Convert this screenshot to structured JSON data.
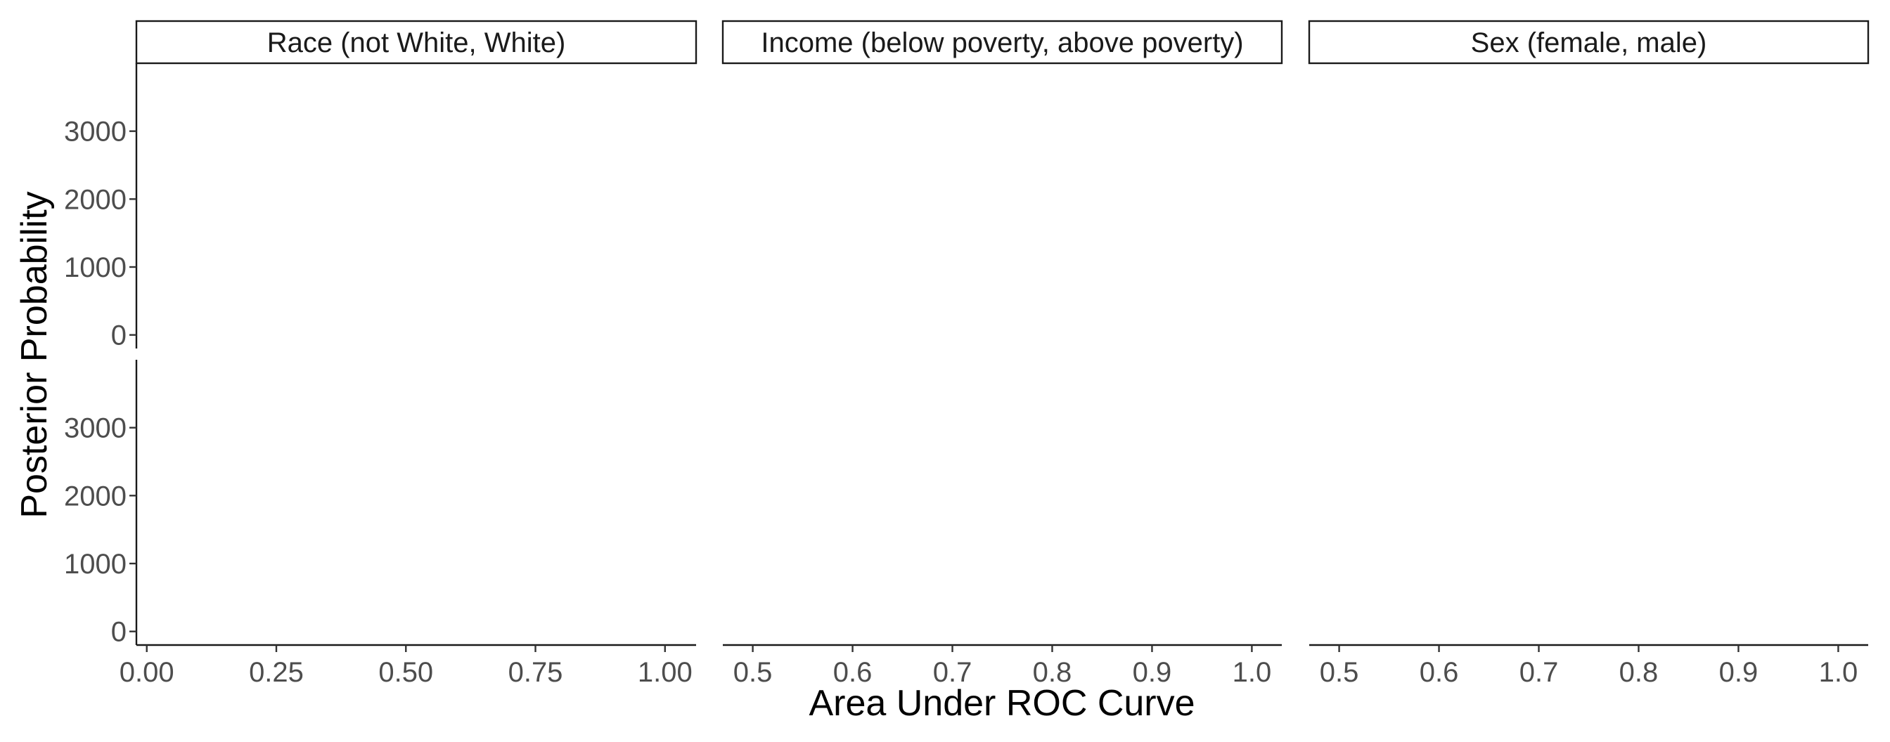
{
  "chart_data": {
    "type": "area",
    "xlabel": "Area Under ROC Curve",
    "ylabel": "Posterior Probability",
    "grid": false,
    "legend": "none",
    "facet_columns": [
      {
        "strip_label": "Race (not White, White)",
        "xlim": [
          -0.02,
          1.06
        ],
        "x_ticks": [
          0.0,
          0.25,
          0.5,
          0.75,
          1.0
        ],
        "x_tick_labels": [
          "0.00",
          "0.25",
          "0.50",
          "0.75",
          "1.00"
        ]
      },
      {
        "strip_label": "Income (below poverty, above poverty)",
        "xlim": [
          0.47,
          1.03
        ],
        "x_ticks": [
          0.5,
          0.6,
          0.7,
          0.8,
          0.9,
          1.0
        ],
        "x_tick_labels": [
          "0.5",
          "0.6",
          "0.7",
          "0.8",
          "0.9",
          "1.0"
        ]
      },
      {
        "strip_label": "Sex (female, male)",
        "xlim": [
          0.47,
          1.03
        ],
        "x_ticks": [
          0.5,
          0.6,
          0.7,
          0.8,
          0.9,
          1.0
        ],
        "x_tick_labels": [
          "0.5",
          "0.6",
          "0.7",
          "0.8",
          "0.9",
          "1.0"
        ]
      }
    ],
    "facet_rows": [
      {
        "ylim": [
          -200,
          4000
        ],
        "y_ticks": [
          0,
          1000,
          2000,
          3000
        ],
        "y_tick_labels": [
          "0",
          "1000",
          "2000",
          "3000"
        ]
      },
      {
        "ylim": [
          -200,
          4000
        ],
        "y_ticks": [
          0,
          1000,
          2000,
          3000
        ],
        "y_tick_labels": [
          "0",
          "1000",
          "2000",
          "3000"
        ]
      }
    ],
    "series": []
  }
}
